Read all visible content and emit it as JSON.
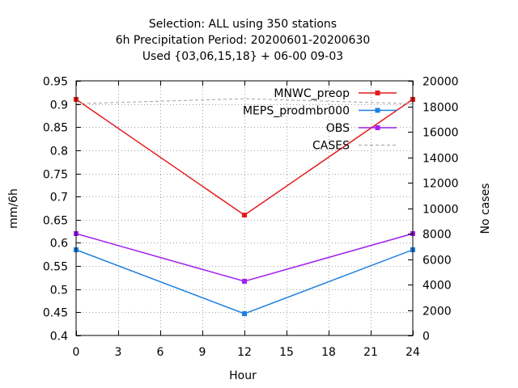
{
  "chart_data": {
    "type": "line",
    "title": [
      "Selection: ALL using   350 stations",
      "6h Precipitation    Period: 20200601-20200630",
      "Used {03,06,15,18} + 06-00 09-03"
    ],
    "xlabel": "Hour",
    "ylabel": "mm/6h",
    "y2label": "No cases",
    "x": [
      0,
      12,
      24
    ],
    "xlim": [
      0,
      24
    ],
    "xticks": [
      "0",
      "3",
      "6",
      "9",
      "12",
      "15",
      "18",
      "21",
      "24"
    ],
    "ylim": [
      0.4,
      0.95
    ],
    "yticks": [
      "0.4",
      "0.45",
      "0.5",
      "0.55",
      "0.6",
      "0.65",
      "0.7",
      "0.75",
      "0.8",
      "0.85",
      "0.9",
      "0.95"
    ],
    "y2lim": [
      0,
      20000
    ],
    "y2ticks": [
      "0",
      "2000",
      "4000",
      "6000",
      "8000",
      "10000",
      "12000",
      "14000",
      "16000",
      "18000",
      "20000"
    ],
    "grid": true,
    "legend_position": "top-right",
    "series": [
      {
        "name": "MNWC_preop",
        "color": "#e41a1c",
        "axis": "left",
        "style": "line-marker",
        "values": [
          0.91,
          0.66,
          0.91
        ]
      },
      {
        "name": "MEPS_prodmbr000",
        "color": "#1e7fe0",
        "axis": "left",
        "style": "line-marker",
        "values": [
          0.585,
          0.447,
          0.585
        ]
      },
      {
        "name": "OBS",
        "color": "#a020f0",
        "axis": "left",
        "style": "line-marker",
        "values": [
          0.62,
          0.517,
          0.62
        ]
      },
      {
        "name": "CASES",
        "color": "#a0a0a0",
        "axis": "right",
        "style": "dashed",
        "values": [
          18200,
          18600,
          18200
        ]
      }
    ]
  }
}
